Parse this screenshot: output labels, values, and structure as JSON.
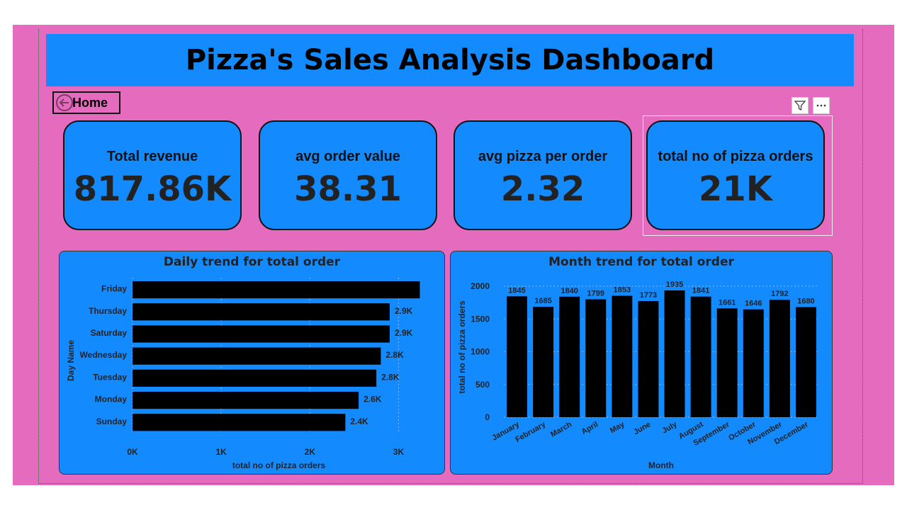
{
  "title": "Pizza's Sales Analysis Dashboard",
  "nav": {
    "home_label": "Home"
  },
  "kpis": [
    {
      "label": "Total revenue",
      "value": "817.86K"
    },
    {
      "label": "avg order value",
      "value": "38.31"
    },
    {
      "label": "avg pizza per order",
      "value": "2.32"
    },
    {
      "label": "total no of pizza orders",
      "value": "21K"
    }
  ],
  "visual_icons": [
    "filter-icon",
    "more-options-icon"
  ],
  "colors": {
    "canvas": "#e46bbd",
    "panel": "#138bff",
    "bars": "#000000"
  },
  "chart_data": [
    {
      "type": "bar",
      "orientation": "horizontal",
      "title": "Daily trend for total order",
      "xlabel": "total no of pizza orders",
      "ylabel": "Day Name",
      "categories": [
        "Friday",
        "Thursday",
        "Saturday",
        "Wednesday",
        "Tuesday",
        "Monday",
        "Sunday"
      ],
      "values": [
        3240,
        2900,
        2900,
        2800,
        2750,
        2550,
        2400
      ],
      "data_labels": [
        "",
        "2.9K",
        "2.9K",
        "2.8K",
        "2.8K",
        "2.6K",
        "2.4K"
      ],
      "xlim": [
        0,
        3300
      ],
      "xticks": [
        0,
        1000,
        2000,
        3000
      ],
      "xtick_labels": [
        "0K",
        "1K",
        "2K",
        "3K"
      ],
      "grid": true
    },
    {
      "type": "bar",
      "orientation": "vertical",
      "title": "Month trend for total order",
      "xlabel": "Month",
      "ylabel": "total no of pizza orders",
      "categories": [
        "January",
        "February",
        "March",
        "April",
        "May",
        "June",
        "July",
        "August",
        "September",
        "October",
        "November",
        "December"
      ],
      "values": [
        1845,
        1685,
        1840,
        1799,
        1853,
        1773,
        1935,
        1841,
        1661,
        1646,
        1792,
        1680
      ],
      "ylim": [
        0,
        2000
      ],
      "yticks": [
        0,
        500,
        1000,
        1500,
        2000
      ],
      "grid": true
    }
  ]
}
